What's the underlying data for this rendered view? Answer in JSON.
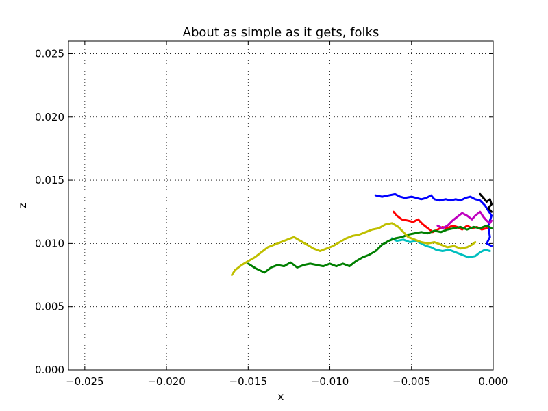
{
  "chart_data": {
    "type": "line",
    "title": "About as simple as it gets, folks",
    "xlabel": "x",
    "ylabel": "z",
    "xlim": [
      -0.026,
      0.0
    ],
    "ylim": [
      0.0,
      0.026
    ],
    "grid": true,
    "legend": "none",
    "x_ticks": [
      -0.025,
      -0.02,
      -0.015,
      -0.01,
      -0.005,
      0.0
    ],
    "y_ticks": [
      0.0,
      0.005,
      0.01,
      0.015,
      0.02,
      0.025
    ],
    "x_tick_labels": [
      "−0.025",
      "−0.020",
      "−0.015",
      "−0.010",
      "−0.005",
      "0.000"
    ],
    "y_tick_labels": [
      "0.000",
      "0.005",
      "0.010",
      "0.015",
      "0.020",
      "0.025"
    ],
    "series": [
      {
        "color": "#0000ff",
        "points": [
          [
            -0.0072,
            0.0138
          ],
          [
            -0.0068,
            0.0137
          ],
          [
            -0.0064,
            0.0138
          ],
          [
            -0.006,
            0.0139
          ],
          [
            -0.0057,
            0.0137
          ],
          [
            -0.0054,
            0.0136
          ],
          [
            -0.005,
            0.0137
          ],
          [
            -0.0047,
            0.0136
          ],
          [
            -0.0044,
            0.0135
          ],
          [
            -0.0041,
            0.0136
          ],
          [
            -0.0038,
            0.0138
          ],
          [
            -0.0036,
            0.0135
          ],
          [
            -0.0033,
            0.0134
          ],
          [
            -0.0029,
            0.0135
          ],
          [
            -0.0026,
            0.0134
          ],
          [
            -0.0023,
            0.0135
          ],
          [
            -0.002,
            0.0134
          ],
          [
            -0.0017,
            0.0136
          ],
          [
            -0.0014,
            0.0137
          ],
          [
            -0.0011,
            0.0135
          ],
          [
            -0.0008,
            0.0134
          ],
          [
            -0.0005,
            0.013
          ],
          [
            -0.0003,
            0.0126
          ],
          [
            -0.0001,
            0.0122
          ],
          [
            -0.0003,
            0.0114
          ],
          [
            -0.0002,
            0.0105
          ],
          [
            -0.0004,
            0.01
          ],
          [
            -0.0001,
            0.0098
          ]
        ]
      },
      {
        "color": "#ff0000",
        "points": [
          [
            -0.0061,
            0.0125
          ],
          [
            -0.0059,
            0.0122
          ],
          [
            -0.0056,
            0.0119
          ],
          [
            -0.0052,
            0.0118
          ],
          [
            -0.0049,
            0.0117
          ],
          [
            -0.0046,
            0.0119
          ],
          [
            -0.0043,
            0.0115
          ],
          [
            -0.004,
            0.0112
          ],
          [
            -0.0037,
            0.0109
          ],
          [
            -0.0034,
            0.0111
          ],
          [
            -0.0031,
            0.0113
          ],
          [
            -0.0028,
            0.0112
          ],
          [
            -0.0025,
            0.0114
          ],
          [
            -0.0022,
            0.0113
          ],
          [
            -0.0019,
            0.0111
          ],
          [
            -0.0016,
            0.0114
          ],
          [
            -0.0013,
            0.0112
          ],
          [
            -0.001,
            0.0113
          ],
          [
            -0.0007,
            0.0111
          ],
          [
            -0.0004,
            0.0112
          ]
        ]
      },
      {
        "color": "#bf00bf",
        "points": [
          [
            -0.0034,
            0.0114
          ],
          [
            -0.0031,
            0.0112
          ],
          [
            -0.0028,
            0.0114
          ],
          [
            -0.0025,
            0.0118
          ],
          [
            -0.0022,
            0.0121
          ],
          [
            -0.0019,
            0.0124
          ],
          [
            -0.0016,
            0.0122
          ],
          [
            -0.0013,
            0.0119
          ],
          [
            -0.0011,
            0.0122
          ],
          [
            -0.0008,
            0.0125
          ],
          [
            -0.0006,
            0.0121
          ],
          [
            -0.0004,
            0.0118
          ],
          [
            -0.0002,
            0.0116
          ],
          [
            -0.0001,
            0.0118
          ]
        ]
      },
      {
        "color": "#000000",
        "points": [
          [
            -0.0008,
            0.0139
          ],
          [
            -0.0006,
            0.0136
          ],
          [
            -0.0004,
            0.0133
          ],
          [
            -0.0002,
            0.0135
          ],
          [
            -0.0001,
            0.0131
          ],
          [
            -0.0003,
            0.0128
          ],
          [
            -0.0001,
            0.0125
          ]
        ]
      },
      {
        "color": "#00bfbf",
        "points": [
          [
            -0.0062,
            0.0104
          ],
          [
            -0.0059,
            0.0102
          ],
          [
            -0.0055,
            0.0103
          ],
          [
            -0.0051,
            0.0101
          ],
          [
            -0.0047,
            0.0102
          ],
          [
            -0.0044,
            0.01
          ],
          [
            -0.0041,
            0.0098
          ],
          [
            -0.0038,
            0.0097
          ],
          [
            -0.0035,
            0.0095
          ],
          [
            -0.0031,
            0.0094
          ],
          [
            -0.0027,
            0.0095
          ],
          [
            -0.0023,
            0.0093
          ],
          [
            -0.0019,
            0.0091
          ],
          [
            -0.0015,
            0.0089
          ],
          [
            -0.0011,
            0.009
          ],
          [
            -0.0008,
            0.0093
          ],
          [
            -0.0005,
            0.0095
          ],
          [
            -0.0002,
            0.0094
          ]
        ]
      },
      {
        "color": "#007f00",
        "points": [
          [
            -0.015,
            0.0084
          ],
          [
            -0.0145,
            0.008
          ],
          [
            -0.014,
            0.0077
          ],
          [
            -0.0136,
            0.0081
          ],
          [
            -0.0132,
            0.0083
          ],
          [
            -0.0128,
            0.0082
          ],
          [
            -0.0124,
            0.0085
          ],
          [
            -0.012,
            0.0081
          ],
          [
            -0.0116,
            0.0083
          ],
          [
            -0.0112,
            0.0084
          ],
          [
            -0.0108,
            0.0083
          ],
          [
            -0.0104,
            0.0082
          ],
          [
            -0.01,
            0.0084
          ],
          [
            -0.0096,
            0.0082
          ],
          [
            -0.0092,
            0.0084
          ],
          [
            -0.0088,
            0.0082
          ],
          [
            -0.0084,
            0.0086
          ],
          [
            -0.008,
            0.0089
          ],
          [
            -0.0076,
            0.0091
          ],
          [
            -0.0072,
            0.0094
          ],
          [
            -0.0068,
            0.0099
          ],
          [
            -0.0064,
            0.0102
          ],
          [
            -0.006,
            0.0104
          ],
          [
            -0.0056,
            0.0105
          ],
          [
            -0.0052,
            0.0107
          ],
          [
            -0.0048,
            0.0108
          ],
          [
            -0.0044,
            0.0109
          ],
          [
            -0.004,
            0.0108
          ],
          [
            -0.0036,
            0.011
          ],
          [
            -0.0032,
            0.0109
          ],
          [
            -0.0028,
            0.0111
          ],
          [
            -0.0024,
            0.0112
          ],
          [
            -0.002,
            0.0113
          ],
          [
            -0.0016,
            0.0111
          ],
          [
            -0.0012,
            0.0113
          ],
          [
            -0.0008,
            0.0112
          ],
          [
            -0.0004,
            0.0114
          ],
          [
            -0.0001,
            0.0112
          ]
        ]
      },
      {
        "color": "#bfbf00",
        "points": [
          [
            -0.016,
            0.0075
          ],
          [
            -0.0158,
            0.0079
          ],
          [
            -0.0154,
            0.0083
          ],
          [
            -0.015,
            0.0086
          ],
          [
            -0.0146,
            0.0089
          ],
          [
            -0.0142,
            0.0093
          ],
          [
            -0.0138,
            0.0097
          ],
          [
            -0.0134,
            0.0099
          ],
          [
            -0.013,
            0.0101
          ],
          [
            -0.0126,
            0.0103
          ],
          [
            -0.0122,
            0.0105
          ],
          [
            -0.0118,
            0.0102
          ],
          [
            -0.0114,
            0.0099
          ],
          [
            -0.011,
            0.0096
          ],
          [
            -0.0106,
            0.0094
          ],
          [
            -0.0102,
            0.0096
          ],
          [
            -0.0098,
            0.0098
          ],
          [
            -0.0094,
            0.0101
          ],
          [
            -0.009,
            0.0104
          ],
          [
            -0.0086,
            0.0106
          ],
          [
            -0.0082,
            0.0107
          ],
          [
            -0.0078,
            0.0109
          ],
          [
            -0.0074,
            0.0111
          ],
          [
            -0.007,
            0.0112
          ],
          [
            -0.0066,
            0.0115
          ],
          [
            -0.0062,
            0.0116
          ],
          [
            -0.0058,
            0.0113
          ],
          [
            -0.0055,
            0.0109
          ],
          [
            -0.0052,
            0.0105
          ],
          [
            -0.0048,
            0.0103
          ],
          [
            -0.0044,
            0.0101
          ],
          [
            -0.004,
            0.01
          ],
          [
            -0.0036,
            0.0101
          ],
          [
            -0.0032,
            0.0099
          ],
          [
            -0.0028,
            0.0097
          ],
          [
            -0.0024,
            0.0098
          ],
          [
            -0.002,
            0.0096
          ],
          [
            -0.0016,
            0.0097
          ],
          [
            -0.0013,
            0.0099
          ],
          [
            -0.0011,
            0.0101
          ]
        ]
      }
    ]
  }
}
